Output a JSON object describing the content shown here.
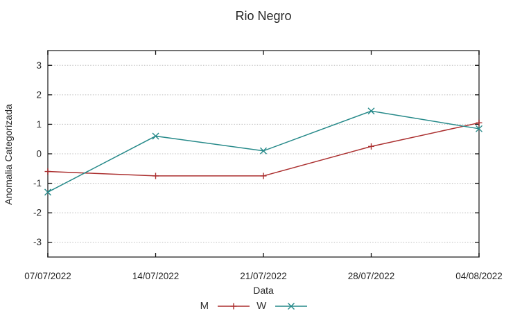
{
  "chart_data": {
    "type": "line",
    "title": "Rio Negro",
    "xlabel": "Data",
    "ylabel": "Anomalia Categorizada",
    "categories": [
      "07/07/2022",
      "14/07/2022",
      "21/07/2022",
      "28/07/2022",
      "04/08/2022"
    ],
    "series": [
      {
        "name": "M",
        "marker": "plus",
        "color": "#ab2f2f",
        "values": [
          -0.6,
          -0.75,
          -0.75,
          0.25,
          1.05
        ]
      },
      {
        "name": "W",
        "marker": "cross",
        "color": "#258989",
        "values": [
          -1.3,
          0.6,
          0.1,
          1.45,
          0.85
        ]
      }
    ],
    "ylim": [
      -3.5,
      3.5
    ],
    "yticks": [
      -3,
      -2,
      -1,
      0,
      1,
      2,
      3
    ],
    "grid": "horizontal-dotted",
    "legend_position": "bottom-center",
    "colors": {
      "background": "#ffffff",
      "border": "#4f4f4f",
      "gridline": "#bdbdbd",
      "tick": "#111111",
      "text": "#262626"
    }
  }
}
